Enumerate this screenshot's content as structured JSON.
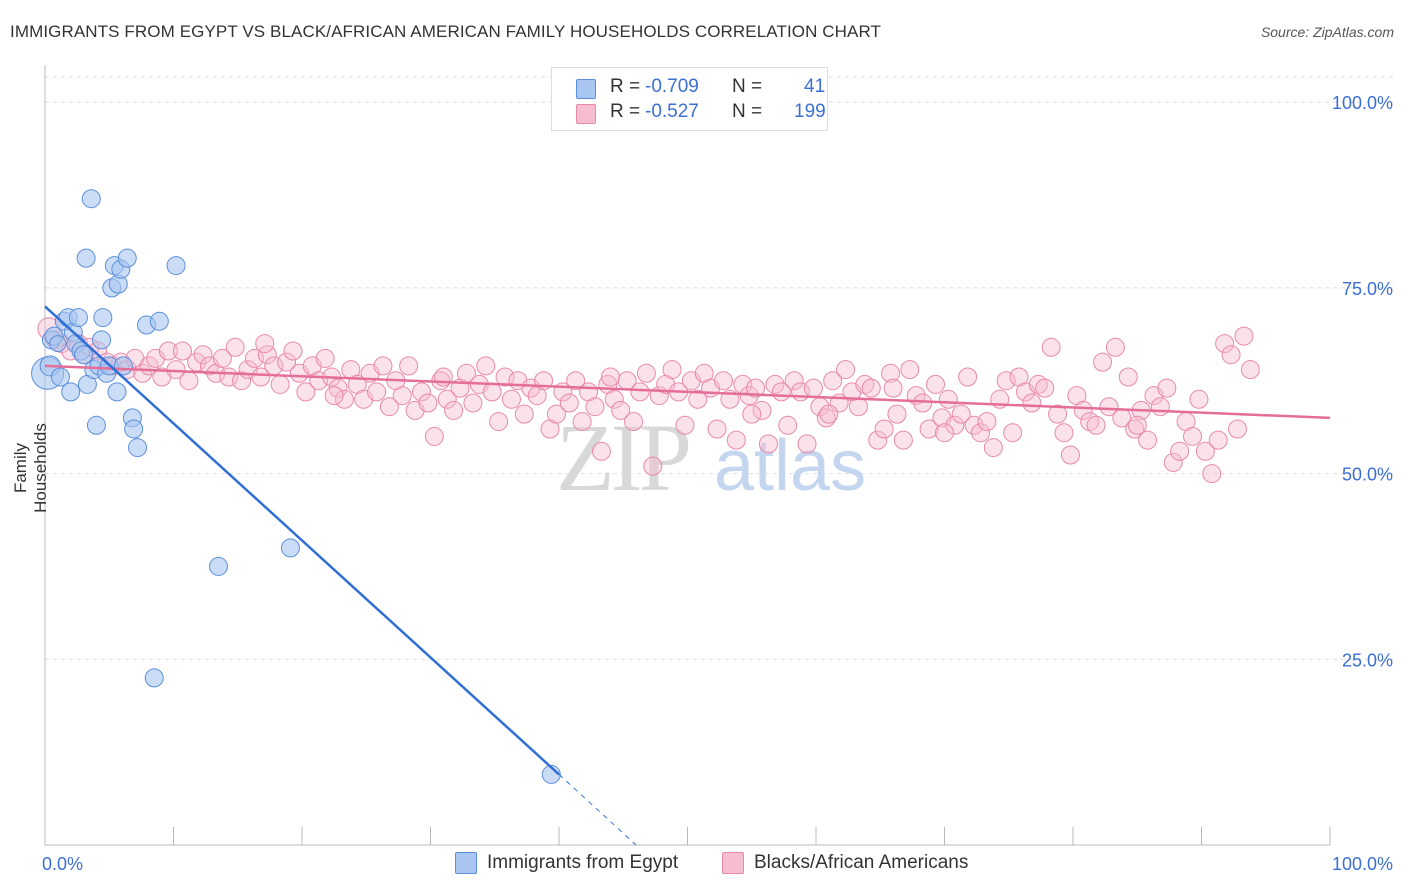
{
  "title": "IMMIGRANTS FROM EGYPT VS BLACK/AFRICAN AMERICAN FAMILY HOUSEHOLDS CORRELATION CHART",
  "source": "Source: ZipAtlas.com",
  "watermark": {
    "zip": "ZIP",
    "atlas": "atlas"
  },
  "legend_top": {
    "rows": [
      {
        "r_label": "R =",
        "r_value": "-0.709",
        "n_label": "N =",
        "n_value": "41"
      },
      {
        "r_label": "R =",
        "r_value": "-0.527",
        "n_label": "N =",
        "n_value": "199"
      }
    ]
  },
  "legend_bottom": {
    "items": [
      "Immigrants from Egypt",
      "Blacks/African Americans"
    ]
  },
  "colors": {
    "blue_fill": "#a9c6f0",
    "blue_stroke": "#5b8fdc",
    "blue_line": "#2f6fd6",
    "pink_fill": "#f6bcd0",
    "pink_stroke": "#e889aa",
    "pink_line": "#e46e99",
    "tick_text": "#3b6fd4",
    "grid": "#dddddd"
  },
  "chart_data": {
    "type": "scatter",
    "title": "IMMIGRANTS FROM EGYPT VS BLACK/AFRICAN AMERICAN FAMILY HOUSEHOLDS CORRELATION CHART",
    "xlabel": "",
    "ylabel": "Family Households",
    "xlim": [
      0,
      100
    ],
    "ylim": [
      0,
      105
    ],
    "x_tick_labels": [
      "0.0%",
      "100.0%"
    ],
    "y_ticks": [
      25,
      50,
      75,
      100
    ],
    "y_tick_labels": [
      "25.0%",
      "50.0%",
      "75.0%",
      "100.0%"
    ],
    "grid": true,
    "series": [
      {
        "name": "Immigrants from Egypt",
        "r": -0.709,
        "n": 41,
        "trend": {
          "x0": 0,
          "y0": 72.5,
          "x1": 40,
          "y1": 9.5,
          "dash_to_x": 46,
          "dash_to_y": 0
        },
        "points": [
          [
            0.2,
            63.5,
            16
          ],
          [
            0.4,
            64.5,
            10
          ],
          [
            0.5,
            68,
            9
          ],
          [
            0.7,
            68.5,
            9
          ],
          [
            1.0,
            67.5,
            8
          ],
          [
            1.2,
            63,
            9
          ],
          [
            1.5,
            70.5,
            9
          ],
          [
            1.8,
            71,
            9
          ],
          [
            2.0,
            61,
            9
          ],
          [
            2.2,
            69,
            9
          ],
          [
            2.4,
            67.5,
            9
          ],
          [
            2.6,
            71,
            9
          ],
          [
            2.8,
            66.5,
            9
          ],
          [
            3.2,
            79,
            9
          ],
          [
            3.3,
            62,
            9
          ],
          [
            3.6,
            87,
            9
          ],
          [
            3.8,
            64,
            9
          ],
          [
            4.0,
            56.5,
            9
          ],
          [
            4.2,
            64.5,
            9
          ],
          [
            4.4,
            68,
            9
          ],
          [
            4.5,
            71,
            9
          ],
          [
            4.8,
            63.5,
            9
          ],
          [
            5.0,
            64.5,
            9
          ],
          [
            5.2,
            75,
            9
          ],
          [
            5.4,
            78,
            9
          ],
          [
            5.6,
            61,
            9
          ],
          [
            5.7,
            75.5,
            9
          ],
          [
            5.9,
            77.5,
            9
          ],
          [
            6.1,
            64.5,
            9
          ],
          [
            6.4,
            79,
            9
          ],
          [
            6.8,
            57.5,
            9
          ],
          [
            6.9,
            56,
            9
          ],
          [
            7.2,
            53.5,
            9
          ],
          [
            7.9,
            70,
            9
          ],
          [
            8.5,
            22.5,
            9
          ],
          [
            8.9,
            70.5,
            9
          ],
          [
            10.2,
            78,
            9
          ],
          [
            13.5,
            37.5,
            9
          ],
          [
            19.1,
            40,
            9
          ],
          [
            39.4,
            9.5,
            9
          ],
          [
            3.0,
            66,
            9
          ]
        ]
      },
      {
        "name": "Blacks/African Americans",
        "r": -0.527,
        "n": 199,
        "trend": {
          "x0": 0,
          "y0": 64.5,
          "x1": 100,
          "y1": 57.5
        },
        "points": [
          [
            0.3,
            69.5,
            11
          ],
          [
            0.8,
            68,
            9
          ],
          [
            1.3,
            67.5,
            9
          ],
          [
            2.0,
            66.5,
            9
          ],
          [
            2.6,
            67.5,
            9
          ],
          [
            3.1,
            66,
            9
          ],
          [
            3.5,
            67,
            9
          ],
          [
            4.1,
            66.5,
            9
          ],
          [
            4.8,
            65,
            9
          ],
          [
            5.3,
            64.5,
            9
          ],
          [
            5.9,
            65,
            9
          ],
          [
            6.4,
            64,
            9
          ],
          [
            7.0,
            65.5,
            9
          ],
          [
            7.6,
            63.5,
            9
          ],
          [
            8.1,
            64.5,
            9
          ],
          [
            8.6,
            65.5,
            9
          ],
          [
            9.1,
            63,
            9
          ],
          [
            9.6,
            66.5,
            9
          ],
          [
            10.2,
            64,
            9
          ],
          [
            10.7,
            66.5,
            9
          ],
          [
            11.2,
            62.5,
            9
          ],
          [
            11.8,
            65,
            9
          ],
          [
            12.3,
            66,
            9
          ],
          [
            12.8,
            64.5,
            9
          ],
          [
            13.3,
            63.5,
            9
          ],
          [
            13.8,
            65.5,
            9
          ],
          [
            14.3,
            63,
            9
          ],
          [
            14.8,
            67,
            9
          ],
          [
            15.3,
            62.5,
            9
          ],
          [
            15.8,
            64,
            9
          ],
          [
            16.3,
            65.5,
            9
          ],
          [
            16.8,
            63,
            9
          ],
          [
            17.3,
            66,
            9
          ],
          [
            17.8,
            64.5,
            9
          ],
          [
            18.3,
            62,
            9
          ],
          [
            18.8,
            65,
            9
          ],
          [
            19.3,
            66.5,
            9
          ],
          [
            19.8,
            63.5,
            9
          ],
          [
            20.3,
            61,
            9
          ],
          [
            20.8,
            64.5,
            9
          ],
          [
            21.3,
            62.5,
            9
          ],
          [
            21.8,
            65.5,
            9
          ],
          [
            22.3,
            63,
            9
          ],
          [
            22.8,
            61.5,
            9
          ],
          [
            23.3,
            60,
            9
          ],
          [
            23.8,
            64,
            9
          ],
          [
            24.3,
            62,
            9
          ],
          [
            24.8,
            60,
            9
          ],
          [
            25.3,
            63.5,
            9
          ],
          [
            25.8,
            61,
            9
          ],
          [
            26.3,
            64.5,
            9
          ],
          [
            26.8,
            59,
            9
          ],
          [
            27.3,
            62.5,
            9
          ],
          [
            27.8,
            60.5,
            9
          ],
          [
            28.3,
            64.5,
            9
          ],
          [
            28.8,
            58.5,
            9
          ],
          [
            29.3,
            61,
            9
          ],
          [
            29.8,
            59.5,
            9
          ],
          [
            30.3,
            55,
            9
          ],
          [
            30.8,
            62.5,
            9
          ],
          [
            31.3,
            60,
            9
          ],
          [
            31.8,
            58.5,
            9
          ],
          [
            32.3,
            61.5,
            9
          ],
          [
            32.8,
            63.5,
            9
          ],
          [
            33.3,
            59.5,
            9
          ],
          [
            33.8,
            62,
            9
          ],
          [
            34.3,
            64.5,
            9
          ],
          [
            34.8,
            61,
            9
          ],
          [
            35.3,
            57,
            9
          ],
          [
            35.8,
            63,
            9
          ],
          [
            36.3,
            60,
            9
          ],
          [
            36.8,
            62.5,
            9
          ],
          [
            37.3,
            58,
            9
          ],
          [
            37.8,
            61.5,
            9
          ],
          [
            38.3,
            60.5,
            9
          ],
          [
            38.8,
            62.5,
            9
          ],
          [
            39.3,
            56,
            9
          ],
          [
            39.8,
            58,
            9
          ],
          [
            40.3,
            61,
            9
          ],
          [
            40.8,
            59.5,
            9
          ],
          [
            41.3,
            62.5,
            9
          ],
          [
            41.8,
            57,
            9
          ],
          [
            42.3,
            61,
            9
          ],
          [
            42.8,
            59,
            9
          ],
          [
            43.3,
            53,
            9
          ],
          [
            43.8,
            62,
            9
          ],
          [
            44.3,
            60,
            9
          ],
          [
            44.8,
            58.5,
            9
          ],
          [
            45.3,
            62.5,
            9
          ],
          [
            45.8,
            57,
            9
          ],
          [
            46.3,
            61,
            9
          ],
          [
            46.8,
            63.5,
            9
          ],
          [
            47.3,
            51,
            9
          ],
          [
            47.8,
            60.5,
            9
          ],
          [
            48.3,
            62,
            9
          ],
          [
            48.8,
            64,
            9
          ],
          [
            49.3,
            61,
            9
          ],
          [
            49.8,
            56.5,
            9
          ],
          [
            50.3,
            62.5,
            9
          ],
          [
            50.8,
            60,
            9
          ],
          [
            51.3,
            63.5,
            9
          ],
          [
            51.8,
            61.5,
            9
          ],
          [
            52.3,
            56,
            9
          ],
          [
            52.8,
            62.5,
            9
          ],
          [
            53.3,
            60,
            9
          ],
          [
            53.8,
            54.5,
            9
          ],
          [
            54.3,
            62,
            9
          ],
          [
            54.8,
            60.5,
            9
          ],
          [
            55.3,
            61.5,
            9
          ],
          [
            55.8,
            58.5,
            9
          ],
          [
            56.3,
            54,
            9
          ],
          [
            56.8,
            62,
            9
          ],
          [
            57.3,
            61,
            9
          ],
          [
            57.8,
            56.5,
            9
          ],
          [
            58.3,
            62.5,
            9
          ],
          [
            58.8,
            61,
            9
          ],
          [
            59.3,
            54,
            9
          ],
          [
            59.8,
            61.5,
            9
          ],
          [
            60.3,
            59,
            9
          ],
          [
            60.8,
            57.5,
            9
          ],
          [
            61.3,
            62.5,
            9
          ],
          [
            61.8,
            59.5,
            9
          ],
          [
            62.3,
            64,
            9
          ],
          [
            62.8,
            61,
            9
          ],
          [
            63.3,
            59,
            9
          ],
          [
            63.8,
            62,
            9
          ],
          [
            64.3,
            61.5,
            9
          ],
          [
            64.8,
            54.5,
            9
          ],
          [
            65.3,
            56,
            9
          ],
          [
            65.8,
            63.5,
            9
          ],
          [
            66.3,
            58,
            9
          ],
          [
            66.8,
            54.5,
            9
          ],
          [
            67.3,
            64,
            9
          ],
          [
            67.8,
            60.5,
            9
          ],
          [
            68.3,
            59.5,
            9
          ],
          [
            68.8,
            56,
            9
          ],
          [
            69.3,
            62,
            9
          ],
          [
            69.8,
            57.5,
            9
          ],
          [
            70.3,
            60,
            9
          ],
          [
            70.8,
            56.5,
            9
          ],
          [
            71.3,
            58,
            9
          ],
          [
            71.8,
            63,
            9
          ],
          [
            72.3,
            56.5,
            9
          ],
          [
            72.8,
            55.5,
            9
          ],
          [
            73.3,
            57,
            9
          ],
          [
            73.8,
            53.5,
            9
          ],
          [
            74.3,
            60,
            9
          ],
          [
            74.8,
            62.5,
            9
          ],
          [
            75.3,
            55.5,
            9
          ],
          [
            75.8,
            63,
            9
          ],
          [
            76.3,
            61,
            9
          ],
          [
            76.8,
            59.5,
            9
          ],
          [
            77.3,
            62,
            9
          ],
          [
            77.8,
            61.5,
            9
          ],
          [
            78.3,
            67,
            9
          ],
          [
            78.8,
            58,
            9
          ],
          [
            79.3,
            55.5,
            9
          ],
          [
            79.8,
            52.5,
            9
          ],
          [
            80.3,
            60.5,
            9
          ],
          [
            80.8,
            58.5,
            9
          ],
          [
            81.3,
            57,
            9
          ],
          [
            81.8,
            56.5,
            9
          ],
          [
            82.3,
            65,
            9
          ],
          [
            82.8,
            59,
            9
          ],
          [
            83.3,
            67,
            9
          ],
          [
            83.8,
            57.5,
            9
          ],
          [
            84.3,
            63,
            9
          ],
          [
            84.8,
            56,
            9
          ],
          [
            85.3,
            58.5,
            9
          ],
          [
            85.8,
            54.5,
            9
          ],
          [
            86.3,
            60.5,
            9
          ],
          [
            86.8,
            59,
            9
          ],
          [
            87.3,
            61.5,
            9
          ],
          [
            87.8,
            51.5,
            9
          ],
          [
            88.3,
            53,
            9
          ],
          [
            88.8,
            57,
            9
          ],
          [
            89.3,
            55,
            9
          ],
          [
            89.8,
            60,
            9
          ],
          [
            90.3,
            53,
            9
          ],
          [
            90.8,
            50,
            9
          ],
          [
            91.3,
            54.5,
            9
          ],
          [
            91.8,
            67.5,
            9
          ],
          [
            92.3,
            66,
            9
          ],
          [
            92.8,
            56,
            9
          ],
          [
            93.3,
            68.5,
            9
          ],
          [
            93.8,
            64,
            9
          ],
          [
            17.1,
            67.5,
            9
          ],
          [
            22.5,
            60.5,
            9
          ],
          [
            31.0,
            63,
            9
          ],
          [
            44.0,
            63,
            9
          ],
          [
            55.0,
            58,
            9
          ],
          [
            61.0,
            58,
            9
          ],
          [
            66.0,
            61.5,
            9
          ],
          [
            70.0,
            55.5,
            9
          ],
          [
            85.0,
            56.5,
            9
          ]
        ]
      }
    ]
  }
}
